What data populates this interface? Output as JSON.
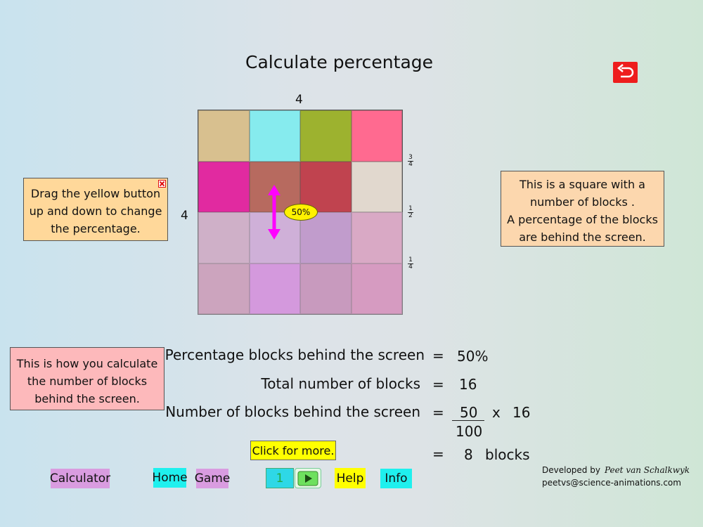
{
  "title": "Calculate percentage",
  "colors": {
    "back_button": "#ee1d1d",
    "handle": "#fff200",
    "arrow": "#ff00ff",
    "drag_note_bg": "#ffd89a",
    "square_note_bg": "#fcd7ae",
    "calc_note_bg": "#fdb9bb",
    "calculator_btn": "#d99ce0",
    "home_btn": "#1ff0ee",
    "game_btn": "#d99ce0",
    "page_box": "#2ed8e6",
    "help_btn": "#ffff00",
    "info_btn": "#1ff0ee",
    "play_btn": "#6ee05e"
  },
  "icons": {
    "back": "back-arrow-icon",
    "close": "close-icon",
    "play": "play-icon",
    "arrow": "double-arrow-icon"
  },
  "grid": {
    "top_label": "4",
    "left_label": "4",
    "cells": [
      [
        "#d8c08f",
        "#86ebee",
        "#9db22f",
        "#ff6a90"
      ],
      [
        "#e12aa0",
        "#b76a5f",
        "#c0434f",
        "#e1d8ce"
      ],
      [
        "#c7a0bb",
        "#c8a0d2",
        "#b383c0",
        "#d695b6"
      ],
      [
        "#c38fac",
        "#cf7fd8",
        "#bd80ad",
        "#d282b0"
      ]
    ],
    "fractions": [
      {
        "num": "3",
        "den": "4"
      },
      {
        "num": "1",
        "den": "2"
      },
      {
        "num": "1",
        "den": "4"
      }
    ]
  },
  "handle": {
    "label": "50%",
    "percentage": 50
  },
  "notes": {
    "drag": [
      "Drag the yellow button",
      "up and down to change",
      "the percentage."
    ],
    "square": [
      "This is a square with a",
      "number of blocks .",
      "A percentage of the blocks",
      "are behind the screen."
    ],
    "calc": [
      "This is how you calculate",
      "the number of blocks",
      "behind the screen."
    ]
  },
  "calc": {
    "pct_label": "Percentage blocks behind the screen",
    "pct_value": "50%",
    "total_label": "Total number of blocks",
    "total_value": "16",
    "number_label": "Number of blocks behind the screen",
    "numerator": "50",
    "denominator": "100",
    "times": "x",
    "multiplier": "16",
    "result_value": "8",
    "result_unit": "blocks",
    "equals": "="
  },
  "more_button": "Click for more.",
  "nav": {
    "calculator": "Calculator",
    "home": "Home",
    "game": "Game",
    "page": "1",
    "help": "Help",
    "info": "Info"
  },
  "credit": {
    "developed_by": "Developed by",
    "author": "Peet van Schalkwyk",
    "email": "peetvs@science-animations.com"
  }
}
